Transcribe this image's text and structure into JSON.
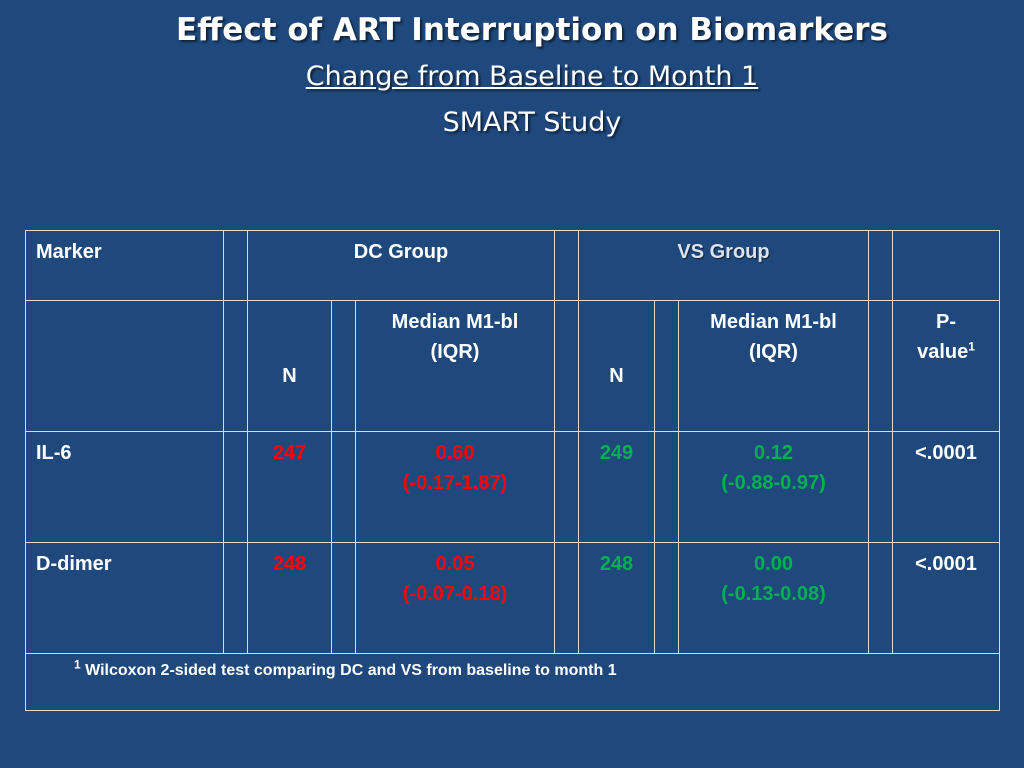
{
  "title": {
    "line1": "Effect of ART Interruption on Biomarkers",
    "line2": "Change from Baseline to Month 1",
    "line3": "SMART Study"
  },
  "table": {
    "header": {
      "marker": "Marker",
      "dc_group": "DC Group",
      "vs_group": "VS Group"
    },
    "subheader": {
      "dc_n": "N",
      "dc_median_line1": "Median M1-bl",
      "dc_median_line2": "(IQR)",
      "vs_n": "N",
      "vs_median_line1": "Median M1-bl",
      "vs_median_line2": "(IQR)",
      "p_line1": "P-",
      "p_line2": "value",
      "p_sup": "1"
    },
    "rows": [
      {
        "marker": "IL-6",
        "dc_n": "247",
        "dc_median": "0.60",
        "dc_iqr": "(-0.17-1.87)",
        "vs_n": "249",
        "vs_median": "0.12",
        "vs_iqr": "(-0.88-0.97)",
        "p": "<.0001"
      },
      {
        "marker": "D-dimer",
        "dc_n": "248",
        "dc_median": "0.05",
        "dc_iqr": "(-0.07-0.18)",
        "vs_n": "248",
        "vs_median": "0.00",
        "vs_iqr": "(-0.13-0.08)",
        "p": "<.0001"
      }
    ],
    "footnote_sup": "1",
    "footnote": " Wilcoxon 2-sided test comparing DC and VS from baseline to month 1"
  },
  "colors": {
    "background": "#1f497d",
    "dc_values": "#ff0000",
    "vs_values": "#00b050",
    "text": "#ffffff"
  }
}
